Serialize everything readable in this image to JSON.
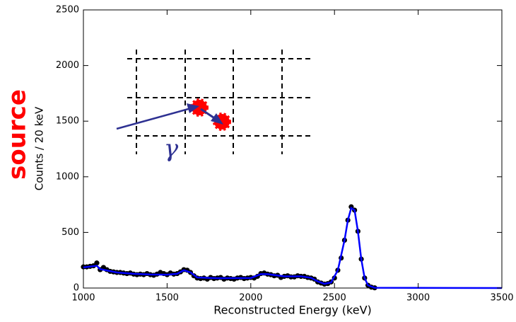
{
  "chart_data": {
    "type": "scatter",
    "x_label": "Reconstructed Energy (keV)",
    "y_label": "Counts / 20 keV",
    "xlim": [
      1000,
      3500
    ],
    "xticks": [
      1000,
      1500,
      2000,
      2500,
      3000,
      3500
    ],
    "ylim": [
      0,
      2500
    ],
    "yticks": [
      0,
      500,
      1000,
      1500,
      2000,
      2500
    ],
    "annotations": [
      "source",
      "γ"
    ],
    "series": [
      {
        "color": "#000000",
        "style": "points",
        "x": [
          1000,
          1020,
          1040,
          1060,
          1080,
          1100,
          1120,
          1140,
          1160,
          1180,
          1200,
          1220,
          1240,
          1260,
          1280,
          1300,
          1320,
          1340,
          1360,
          1380,
          1400,
          1420,
          1440,
          1460,
          1480,
          1500,
          1520,
          1540,
          1560,
          1580,
          1600,
          1620,
          1640,
          1660,
          1680,
          1700,
          1720,
          1740,
          1760,
          1780,
          1800,
          1820,
          1840,
          1860,
          1880,
          1900,
          1920,
          1940,
          1960,
          1980,
          2000,
          2020,
          2040,
          2060,
          2080,
          2100,
          2120,
          2140,
          2160,
          2180,
          2200,
          2220,
          2240,
          2260,
          2280,
          2300,
          2320,
          2340,
          2360,
          2380,
          2400,
          2420,
          2440,
          2460,
          2480,
          2500,
          2520,
          2540,
          2560,
          2580,
          2600,
          2620,
          2640,
          2660,
          2680,
          2700,
          2720,
          2740
        ],
        "values": [
          190,
          190,
          195,
          200,
          225,
          165,
          185,
          165,
          150,
          145,
          140,
          140,
          135,
          130,
          135,
          125,
          120,
          125,
          120,
          130,
          120,
          115,
          125,
          140,
          130,
          120,
          135,
          125,
          130,
          145,
          165,
          160,
          140,
          110,
          90,
          85,
          90,
          80,
          95,
          85,
          90,
          95,
          80,
          90,
          85,
          80,
          90,
          95,
          85,
          90,
          95,
          90,
          105,
          130,
          135,
          125,
          120,
          110,
          115,
          95,
          105,
          110,
          100,
          100,
          110,
          105,
          105,
          95,
          90,
          80,
          55,
          45,
          35,
          40,
          55,
          90,
          160,
          270,
          430,
          610,
          730,
          700,
          510,
          260,
          90,
          25,
          8,
          2
        ]
      },
      {
        "color": "#0000ff",
        "style": "line",
        "x": [
          1000,
          1080,
          1100,
          1200,
          1300,
          1400,
          1500,
          1560,
          1600,
          1640,
          1680,
          1800,
          2000,
          2060,
          2100,
          2200,
          2300,
          2360,
          2400,
          2440,
          2480,
          2520,
          2560,
          2580,
          2600,
          2620,
          2640,
          2660,
          2680,
          2700,
          2740,
          3500
        ],
        "values": [
          185,
          200,
          170,
          140,
          128,
          122,
          120,
          128,
          160,
          140,
          95,
          88,
          90,
          125,
          125,
          105,
          105,
          92,
          60,
          38,
          50,
          160,
          430,
          610,
          720,
          700,
          510,
          260,
          90,
          25,
          2,
          0
        ]
      }
    ]
  }
}
